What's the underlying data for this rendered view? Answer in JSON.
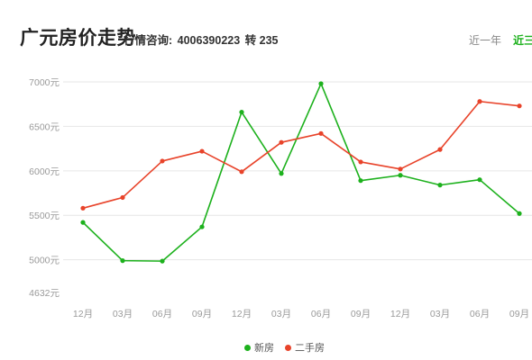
{
  "header": {
    "title": "广元房价走势",
    "hotline_label": "行情咨询:",
    "hotline_number": "4006390223",
    "hotline_ext": "转 235",
    "tabs": [
      {
        "label": "近一年",
        "active": false
      },
      {
        "label": "近三年",
        "active": true
      }
    ]
  },
  "chart_data": {
    "type": "line",
    "categories": [
      "12月",
      "03月",
      "06月",
      "09月",
      "12月",
      "03月",
      "06月",
      "09月",
      "12月",
      "03月",
      "06月",
      "09月"
    ],
    "y_ticks": [
      "7000元",
      "6500元",
      "6000元",
      "5500元",
      "5000元",
      "4632元"
    ],
    "y_tick_values": [
      7000,
      6500,
      6000,
      5500,
      5000,
      4632
    ],
    "ylim": [
      4632,
      7000
    ],
    "grid": true,
    "legend_position": "bottom",
    "series": [
      {
        "name": "新房",
        "color": "#1db11d",
        "values": [
          5420,
          4990,
          4985,
          5370,
          6660,
          5970,
          6980,
          5890,
          5950,
          5840,
          5900,
          5520
        ]
      },
      {
        "name": "二手房",
        "color": "#e8432a",
        "values": [
          5580,
          5700,
          6110,
          6220,
          5990,
          6320,
          6420,
          6100,
          6020,
          6240,
          6780,
          6730
        ]
      }
    ]
  }
}
